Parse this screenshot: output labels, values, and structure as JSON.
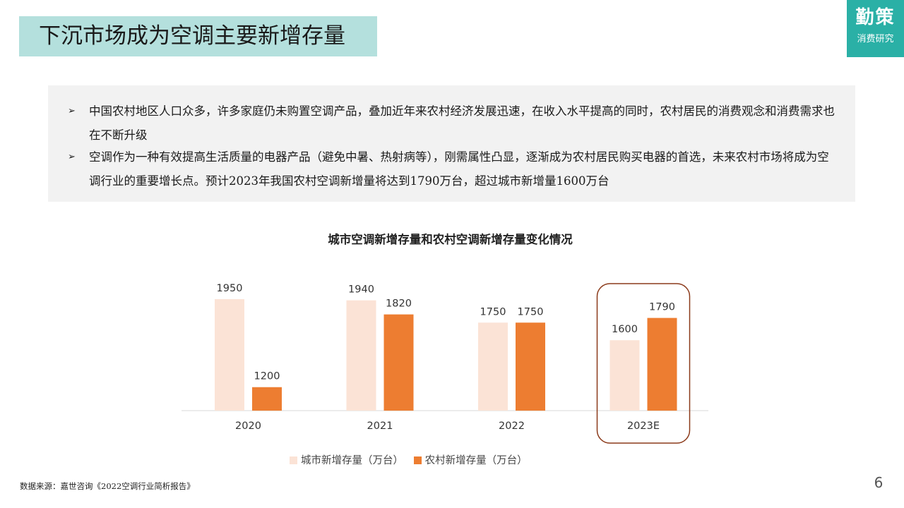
{
  "slide": {
    "title": "下沉市场成为空调主要新增存量",
    "page_number": "6",
    "source": "数据来源：嘉世咨询《2022空调行业简析报告》"
  },
  "logo": {
    "main": "勤策",
    "sub": "消费研究"
  },
  "summary": {
    "bullet_symbol": "➢",
    "bullets": [
      "中国农村地区人口众多，许多家庭仍未购置空调产品，叠加近年来农村经济发展迅速，在收入水平提高的同时，农村居民的消费观念和消费需求也在不断升级",
      "空调作为一种有效提高生活质量的电器产品（避免中暑、热射病等），刚需属性凸显，逐渐成为农村居民购买电器的首选，未来农村市场将成为空调行业的重要增长点。预计2023年我国农村空调新增量将达到1790万台，超过城市新增量1600万台"
    ]
  },
  "chart_data": {
    "type": "bar",
    "title": "城市空调新增存量和农村空调新增存量变化情况",
    "categories": [
      "2020",
      "2021",
      "2022",
      "2023E"
    ],
    "series": [
      {
        "name": "城市新增存量（万台）",
        "values": [
          1950,
          1940,
          1750,
          1600
        ],
        "color": "#fbe3d6"
      },
      {
        "name": "农村新增存量（万台）",
        "values": [
          1200,
          1820,
          1750,
          1790
        ],
        "color": "#ed7d31"
      }
    ],
    "ylim": [
      0,
      2000
    ],
    "grid": false,
    "legend": "bottom",
    "highlight_category": "2023E",
    "highlight_color": "#8b3a1a"
  }
}
